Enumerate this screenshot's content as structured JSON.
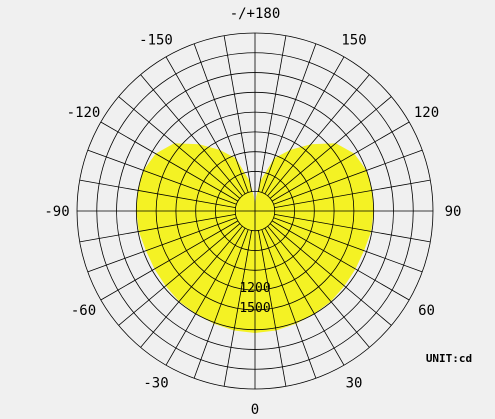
{
  "chart_data": {
    "type": "polar",
    "unit_label": "UNIT:cd",
    "grid": true,
    "angle_range_deg": [
      -180,
      180
    ],
    "angle_grid_step_deg": 10,
    "angle_zero_position": "bottom",
    "angle_tick_labels": [
      {
        "angle": 0,
        "text": "0"
      },
      {
        "angle": 30,
        "text": "30"
      },
      {
        "angle": 60,
        "text": "60"
      },
      {
        "angle": 90,
        "text": "90"
      },
      {
        "angle": 120,
        "text": "120"
      },
      {
        "angle": 150,
        "text": "150"
      },
      {
        "angle": 180,
        "text": "-/+180"
      },
      {
        "angle": -150,
        "text": "-150"
      },
      {
        "angle": -120,
        "text": "-120"
      },
      {
        "angle": -90,
        "text": "-90"
      },
      {
        "angle": -60,
        "text": "-60"
      },
      {
        "angle": -30,
        "text": "-30"
      }
    ],
    "radial_max": 2700,
    "radial_rings": [
      300,
      600,
      900,
      1200,
      1500,
      1800,
      2100,
      2400,
      2700
    ],
    "radial_tick_labels": [
      {
        "value": 1200,
        "text": "1200"
      },
      {
        "value": 1500,
        "text": "1500"
      }
    ],
    "fill_color": "#f4f224",
    "grid_color": "#000000",
    "series": [
      {
        "fill": true,
        "angles": [
          0,
          10,
          20,
          30,
          40,
          50,
          60,
          70,
          80,
          90,
          100,
          110,
          120,
          130,
          140,
          150,
          160,
          170,
          175,
          180,
          -175,
          -170,
          -160,
          -150,
          -140,
          -130,
          -120,
          -110,
          -100,
          -90,
          -80,
          -70,
          -60,
          -50,
          -40,
          -30,
          -20,
          -10
        ],
        "values": [
          1850,
          1840,
          1820,
          1800,
          1790,
          1770,
          1760,
          1760,
          1790,
          1800,
          1810,
          1800,
          1740,
          1600,
          1320,
          1070,
          850,
          460,
          230,
          100,
          230,
          460,
          850,
          1070,
          1320,
          1600,
          1740,
          1800,
          1810,
          1800,
          1790,
          1760,
          1760,
          1770,
          1790,
          1800,
          1820,
          1840
        ]
      }
    ]
  }
}
